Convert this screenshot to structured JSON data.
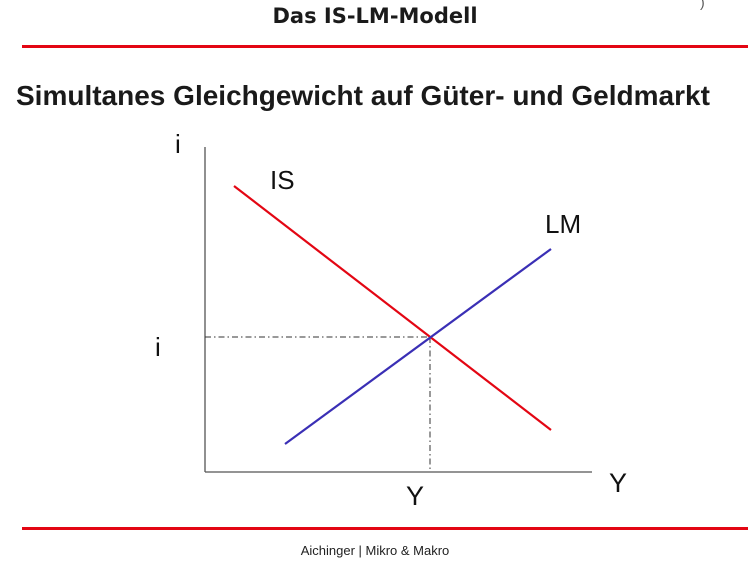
{
  "slide": {
    "header_title": "Das IS-LM-Modell",
    "subtitle": "Simultanes Gleichgewicht auf Güter- und Geldmarkt",
    "footer": "Aichinger | Mikro & Makro"
  },
  "diagram": {
    "y_axis_label": "i",
    "x_axis_label": "Y",
    "equilibrium_i_label": "i",
    "equilibrium_y_label": "Y",
    "is_label": "IS",
    "lm_label": "LM",
    "colors": {
      "is_curve": "#e30613",
      "lm_curve": "#3a2fb5",
      "rule": "#e30613"
    }
  }
}
